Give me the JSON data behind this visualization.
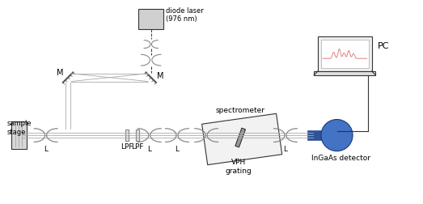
{
  "bg_color": "#ffffff",
  "line_color": "#333333",
  "gray_dark": "#555555",
  "gray_med": "#888888",
  "gray_light": "#cccccc",
  "gray_fill": "#d0d0d0",
  "detector_blue": "#4472c4",
  "detector_dark_blue": "#2f5496",
  "raman_peak_color": "#e08080",
  "beam_color": "#aaaaaa",
  "figsize": [
    5.23,
    2.52
  ],
  "dpi": 100,
  "labels": {
    "diode_laser": "diode laser\n(976 nm)",
    "PC": "PC",
    "M1": "M",
    "M2": "M",
    "sample_stage": "sample\nstage",
    "L1": "L",
    "LPF1": "LPF",
    "LPF2": "LPF",
    "L2": "L",
    "L3": "L",
    "VPH": "VPH\ngrating",
    "L4": "L",
    "InGaAs": "InGaAs detector",
    "spectrometer": "spectrometer"
  }
}
